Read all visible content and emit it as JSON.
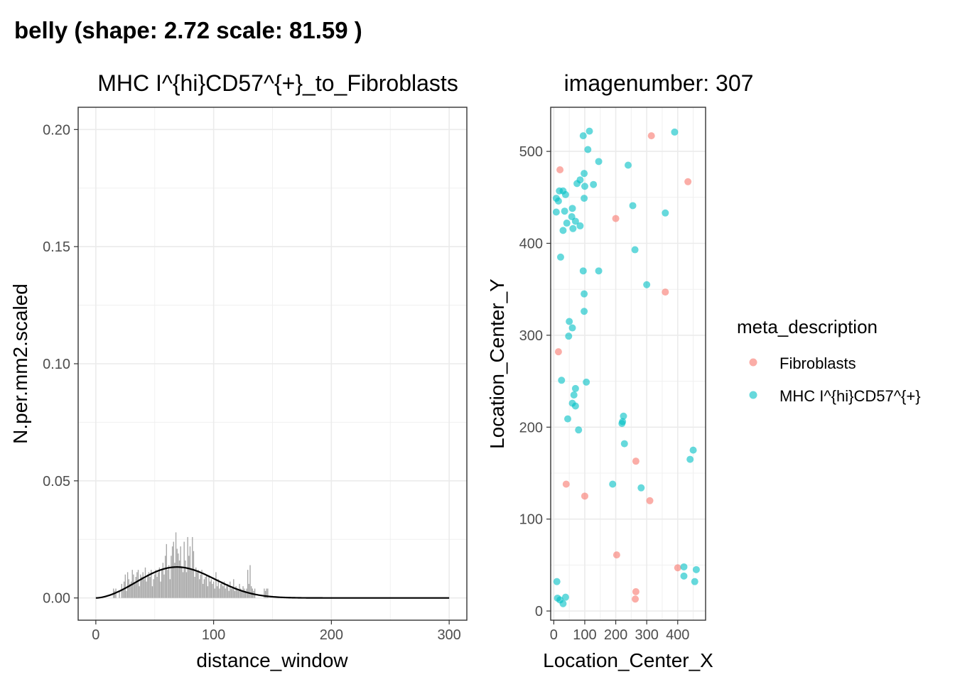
{
  "page": {
    "title": "belly (shape: 2.72 scale: 81.59 )"
  },
  "chart_data": [
    {
      "type": "bar",
      "title": "MHC I^{hi}CD57^{+}_to_Fibroblasts",
      "xlabel": "distance_window",
      "ylabel": "N.per.mm2.scaled",
      "xlim": [
        -15,
        315
      ],
      "ylim": [
        -0.0095,
        0.2095
      ],
      "x_ticks": [
        0,
        100,
        200,
        300
      ],
      "y_ticks": [
        0.0,
        0.05,
        0.1,
        0.15,
        0.2
      ],
      "x_tick_labels": [
        "0",
        "100",
        "200",
        "300"
      ],
      "y_tick_labels": [
        "0.00",
        "0.05",
        "0.10",
        "0.15",
        "0.20"
      ],
      "grid": true,
      "bar_color": "#a6a6a6",
      "histogram": {
        "x": [
          15,
          16,
          17,
          20,
          22,
          23,
          24,
          25,
          26,
          27,
          28,
          29,
          30,
          31,
          32,
          33,
          34,
          35,
          36,
          37,
          38,
          39,
          40,
          41,
          42,
          43,
          44,
          45,
          46,
          47,
          48,
          49,
          50,
          51,
          52,
          53,
          54,
          55,
          56,
          57,
          58,
          59,
          60,
          61,
          62,
          63,
          64,
          65,
          66,
          67,
          68,
          69,
          70,
          71,
          72,
          73,
          74,
          75,
          76,
          77,
          78,
          79,
          80,
          81,
          82,
          83,
          84,
          85,
          86,
          87,
          88,
          89,
          90,
          91,
          92,
          93,
          94,
          95,
          96,
          97,
          98,
          99,
          100,
          101,
          102,
          103,
          104,
          105,
          106,
          107,
          108,
          109,
          110,
          111,
          112,
          113,
          114,
          115,
          116,
          117,
          118,
          119,
          120,
          121,
          122,
          123,
          124,
          125,
          126,
          127,
          128,
          129,
          130,
          131,
          132,
          133,
          134,
          135,
          143,
          144,
          145,
          146
        ],
        "values": [
          0.004,
          0.003,
          0.004,
          0.003,
          0.006,
          0.004,
          0.007,
          0.01,
          0.003,
          0.011,
          0.008,
          0.006,
          0.007,
          0.012,
          0.01,
          0.006,
          0.009,
          0.011,
          0.012,
          0.005,
          0.01,
          0.009,
          0.011,
          0.008,
          0.013,
          0.007,
          0.01,
          0.011,
          0.009,
          0.012,
          0.005,
          0.008,
          0.01,
          0.012,
          0.009,
          0.011,
          0.013,
          0.007,
          0.012,
          0.015,
          0.01,
          0.018,
          0.023,
          0.012,
          0.014,
          0.008,
          0.018,
          0.022,
          0.024,
          0.015,
          0.028,
          0.021,
          0.019,
          0.016,
          0.022,
          0.013,
          0.011,
          0.024,
          0.016,
          0.011,
          0.026,
          0.018,
          0.022,
          0.012,
          0.026,
          0.02,
          0.009,
          0.013,
          0.011,
          0.012,
          0.008,
          0.01,
          0.012,
          0.006,
          0.008,
          0.009,
          0.01,
          0.005,
          0.009,
          0.007,
          0.008,
          0.006,
          0.007,
          0.004,
          0.011,
          0.005,
          0.008,
          0.004,
          0.006,
          0.007,
          0.005,
          0.007,
          0.004,
          0.005,
          0.006,
          0.003,
          0.007,
          0.004,
          0.005,
          0.008,
          0.003,
          0.005,
          0.004,
          0.003,
          0.006,
          0.004,
          0.003,
          0.005,
          0.004,
          0.003,
          0.004,
          0.012,
          0.006,
          0.014,
          0.005,
          0.004,
          0.003,
          0.004,
          0.004,
          0.003,
          0.004,
          0.004
        ]
      },
      "fit_curve": {
        "distribution": "weibull",
        "shape": 2.72,
        "scale": 81.59,
        "peak_value": 0.0132,
        "x_range": [
          0,
          300
        ]
      }
    },
    {
      "type": "scatter",
      "title": "imagenumber:  307",
      "xlabel": "Location_Center_X",
      "ylabel": "Location_Center_Y",
      "xlim": [
        -10,
        490
      ],
      "ylim": [
        -10,
        548
      ],
      "x_ticks": [
        0,
        100,
        200,
        300,
        400
      ],
      "y_ticks": [
        0,
        100,
        200,
        300,
        400,
        500
      ],
      "x_tick_labels": [
        "0",
        "100",
        "200",
        "300",
        "400"
      ],
      "y_tick_labels": [
        "0",
        "100",
        "200",
        "300",
        "400",
        "500"
      ],
      "grid": true,
      "legend": {
        "title": "meta_description",
        "position": "right"
      },
      "series": [
        {
          "name": "Fibroblasts",
          "color": "#F8766D",
          "points": [
            [
              20,
              480
            ],
            [
              315,
              517
            ],
            [
              433,
              467
            ],
            [
              200,
              427
            ],
            [
              360,
              347
            ],
            [
              15,
              282
            ],
            [
              265,
              163
            ],
            [
              40,
              138
            ],
            [
              100,
              125
            ],
            [
              310,
              120
            ],
            [
              203,
              61
            ],
            [
              400,
              47
            ],
            [
              265,
              21
            ],
            [
              263,
              13
            ]
          ]
        },
        {
          "name": "MHC I^{hi}CD57^{+}",
          "color": "#00BFC4",
          "points": [
            [
              95,
              517
            ],
            [
              115,
              522
            ],
            [
              390,
              521
            ],
            [
              110,
              502
            ],
            [
              145,
              489
            ],
            [
              240,
              485
            ],
            [
              98,
              476
            ],
            [
              85,
              469
            ],
            [
              75,
              465
            ],
            [
              100,
              462
            ],
            [
              128,
              464
            ],
            [
              18,
              457
            ],
            [
              30,
              457
            ],
            [
              38,
              453
            ],
            [
              8,
              449
            ],
            [
              15,
              446
            ],
            [
              98,
              449
            ],
            [
              255,
              441
            ],
            [
              60,
              438
            ],
            [
              35,
              435
            ],
            [
              8,
              434
            ],
            [
              360,
              433
            ],
            [
              58,
              429
            ],
            [
              70,
              424
            ],
            [
              42,
              422
            ],
            [
              85,
              419
            ],
            [
              62,
              416
            ],
            [
              30,
              414
            ],
            [
              262,
              393
            ],
            [
              22,
              385
            ],
            [
              95,
              370
            ],
            [
              145,
              370
            ],
            [
              300,
              355
            ],
            [
              98,
              345
            ],
            [
              98,
              326
            ],
            [
              50,
              315
            ],
            [
              60,
              308
            ],
            [
              48,
              299
            ],
            [
              25,
              251
            ],
            [
              105,
              249
            ],
            [
              70,
              242
            ],
            [
              65,
              235
            ],
            [
              60,
              226
            ],
            [
              70,
              223
            ],
            [
              45,
              209
            ],
            [
              225,
              212
            ],
            [
              222,
              206
            ],
            [
              220,
              204
            ],
            [
              80,
              197
            ],
            [
              228,
              182
            ],
            [
              450,
              175
            ],
            [
              440,
              165
            ],
            [
              190,
              138
            ],
            [
              282,
              134
            ],
            [
              420,
              48
            ],
            [
              460,
              45
            ],
            [
              420,
              38
            ],
            [
              455,
              32
            ],
            [
              10,
              32
            ],
            [
              12,
              14
            ],
            [
              38,
              15
            ],
            [
              20,
              12
            ],
            [
              30,
              8
            ]
          ]
        }
      ]
    }
  ]
}
